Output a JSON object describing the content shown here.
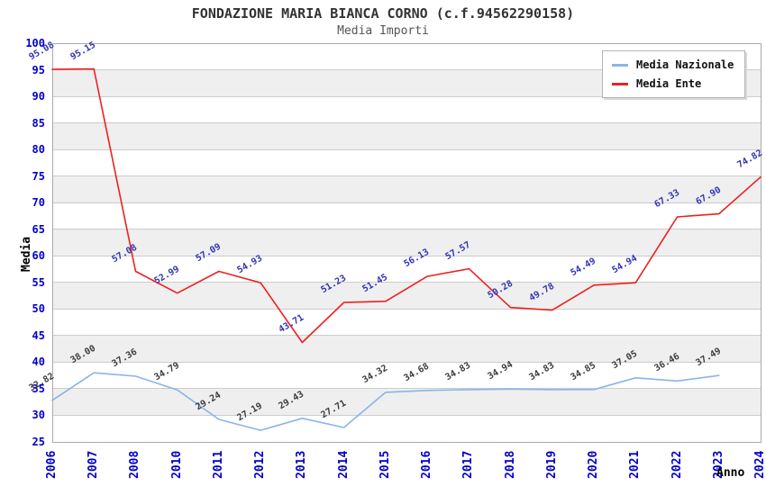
{
  "title": "FONDAZIONE MARIA BIANCA CORNO (c.f.94562290158)",
  "subtitle": "Media Importi",
  "axes": {
    "y_label": "Media",
    "x_label": "Anno",
    "y_ticks": [
      100,
      95,
      90,
      85,
      80,
      75,
      70,
      65,
      60,
      55,
      50,
      45,
      40,
      35,
      30,
      25
    ],
    "tick_color": "#0000cc"
  },
  "legend": {
    "position": "top-right",
    "items": [
      {
        "label": "Media Nazionale",
        "color": "#8ab4e8"
      },
      {
        "label": "Media Ente",
        "color": "#ee2020"
      }
    ]
  },
  "colors": {
    "band_gray": "#efefef",
    "band_white": "#ffffff",
    "gridline": "#cccccc",
    "plot_border": "#aaaaaa",
    "title": "#333333",
    "subtitle": "#555555"
  },
  "chart_data": {
    "type": "line",
    "title": "FONDAZIONE MARIA BIANCA CORNO (c.f.94562290158)",
    "subtitle": "Media Importi",
    "xlabel": "Anno",
    "ylabel": "Media",
    "ylim": [
      25,
      100
    ],
    "grid": "horizontal",
    "legend_position": "top-right",
    "categories": [
      "2006",
      "2007",
      "2008",
      "2010",
      "2011",
      "2012",
      "2013",
      "2014",
      "2015",
      "2016",
      "2017",
      "2018",
      "2019",
      "2020",
      "2021",
      "2022",
      "2023",
      "2024"
    ],
    "series": [
      {
        "name": "Media Nazionale",
        "color": "#8ab4e8",
        "label_color": "#3c3c3c",
        "values": [
          32.82,
          38.0,
          37.36,
          34.79,
          29.24,
          27.19,
          29.43,
          27.71,
          34.32,
          34.68,
          34.83,
          34.94,
          34.83,
          34.85,
          37.05,
          36.46,
          37.49,
          null
        ]
      },
      {
        "name": "Media Ente",
        "color": "#ee2020",
        "label_color": "#3333b4",
        "values": [
          95.08,
          95.15,
          57.08,
          52.99,
          57.09,
          54.93,
          43.71,
          51.23,
          51.45,
          56.13,
          57.57,
          50.28,
          49.78,
          54.49,
          54.94,
          67.33,
          67.9,
          74.82
        ]
      }
    ]
  }
}
